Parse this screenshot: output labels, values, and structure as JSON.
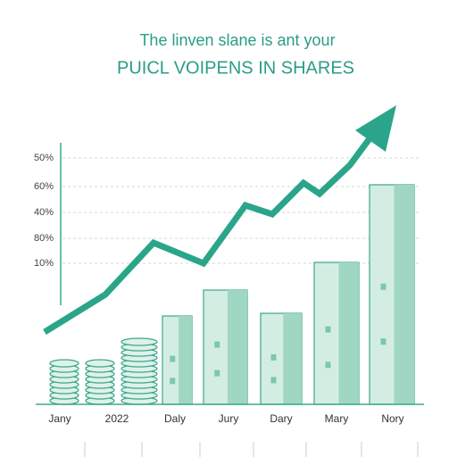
{
  "header": {
    "title": "The linven slane is ant your",
    "subtitle": "PUICL VOIPENS IN SHARES"
  },
  "y_labels": [
    "50%",
    "60%",
    "40%",
    "80%",
    "10%"
  ],
  "x_labels": [
    "Jany",
    "2022",
    "Daly",
    "Jury",
    "Dary",
    "Mary",
    "Nory"
  ]
}
